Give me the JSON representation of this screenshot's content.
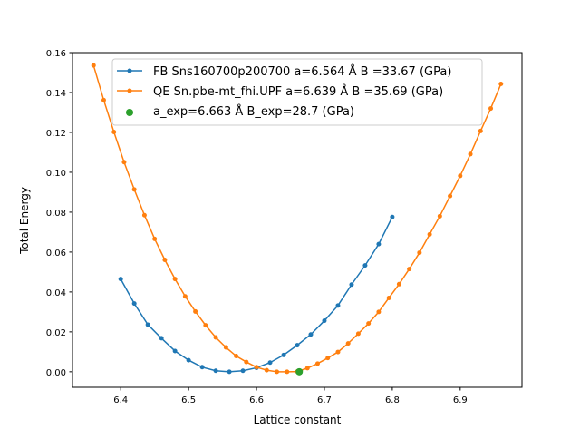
{
  "chart_data": {
    "type": "line",
    "title": "",
    "xlabel": "Lattice constant",
    "ylabel": "Total Energy",
    "xlim": [
      6.329,
      6.991
    ],
    "ylim": [
      -0.0078,
      0.16
    ],
    "xticks": [
      6.4,
      6.5,
      6.6,
      6.7,
      6.8,
      6.9
    ],
    "xtick_labels": [
      "6.4",
      "6.5",
      "6.6",
      "6.7",
      "6.8",
      "6.9"
    ],
    "yticks": [
      0,
      0.02,
      0.04,
      0.06,
      0.08,
      0.1,
      0.12,
      0.14,
      0.16
    ],
    "ytick_labels": [
      "0.00",
      "0.02",
      "0.04",
      "0.06",
      "0.08",
      "0.10",
      "0.12",
      "0.14",
      "0.16"
    ],
    "grid": false,
    "legend_position": "top-center",
    "series": [
      {
        "name": "FB Sns160700p200700 a=6.564 Å B =33.67 (GPa)",
        "color": "#1f77b4",
        "style": "line-dots",
        "x": [
          6.4,
          6.42,
          6.44,
          6.46,
          6.48,
          6.5,
          6.52,
          6.54,
          6.56,
          6.58,
          6.6,
          6.62,
          6.64,
          6.66,
          6.68,
          6.7,
          6.72,
          6.74,
          6.76,
          6.78,
          6.8
        ],
        "y": [
          0.0465,
          0.0342,
          0.0236,
          0.0168,
          0.0104,
          0.0058,
          0.0023,
          0.0005,
          0.0,
          0.0005,
          0.002,
          0.0046,
          0.0084,
          0.0133,
          0.0187,
          0.0256,
          0.0332,
          0.0437,
          0.0533,
          0.064,
          0.0776
        ]
      },
      {
        "name": "QE Sn.pbe-mt_fhi.UPF a=6.639 Å B =35.69 (GPa)",
        "color": "#ff7f0e",
        "style": "line-dots",
        "x": [
          6.36,
          6.375,
          6.39,
          6.405,
          6.42,
          6.435,
          6.45,
          6.465,
          6.48,
          6.495,
          6.51,
          6.525,
          6.54,
          6.555,
          6.57,
          6.585,
          6.6,
          6.615,
          6.63,
          6.645,
          6.66,
          6.675,
          6.69,
          6.705,
          6.72,
          6.735,
          6.75,
          6.765,
          6.78,
          6.795,
          6.81,
          6.825,
          6.84,
          6.855,
          6.87,
          6.885,
          6.9,
          6.915,
          6.93,
          6.945,
          6.96
        ],
        "y": [
          0.1536,
          0.1362,
          0.1202,
          0.1051,
          0.0914,
          0.0785,
          0.0666,
          0.0561,
          0.0465,
          0.0378,
          0.0302,
          0.0233,
          0.0172,
          0.0122,
          0.0079,
          0.0049,
          0.0023,
          0.0008,
          0.0,
          0.0,
          0.0001,
          0.0018,
          0.0041,
          0.0069,
          0.0099,
          0.0142,
          0.0191,
          0.0242,
          0.03,
          0.037,
          0.0439,
          0.0515,
          0.0597,
          0.0689,
          0.078,
          0.0881,
          0.0982,
          0.1091,
          0.1207,
          0.132,
          0.1443
        ]
      },
      {
        "name": "a_exp=6.663 Å  B_exp=28.7 (GPa)",
        "color": "#2ca02c",
        "style": "marker",
        "x": [
          6.663
        ],
        "y": [
          0.0
        ]
      }
    ]
  }
}
